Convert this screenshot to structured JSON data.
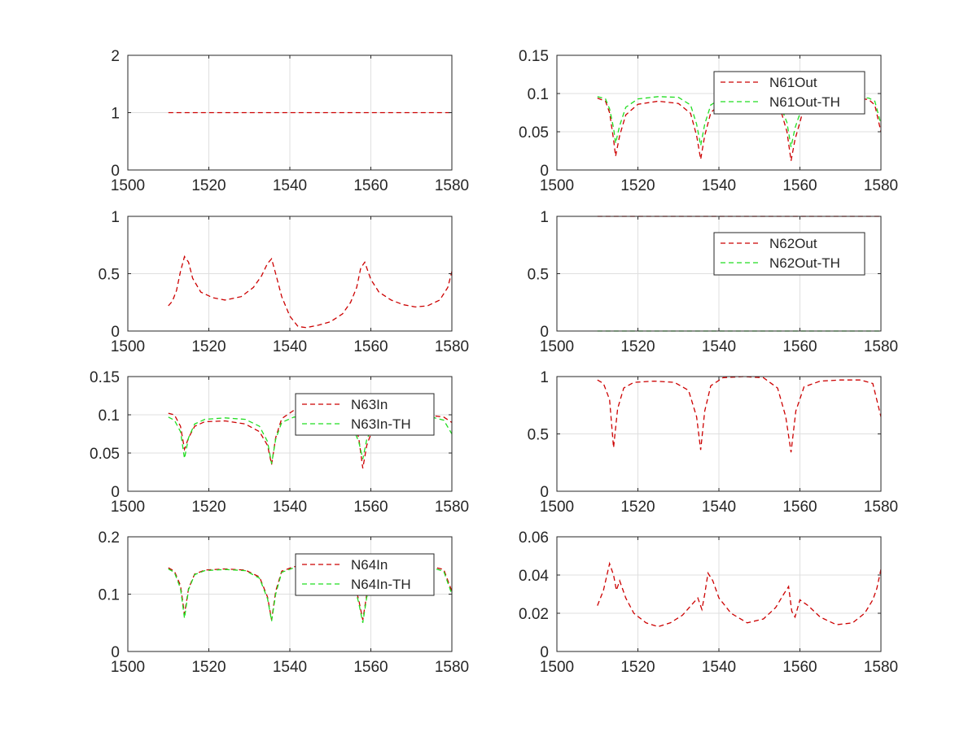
{
  "figure": {
    "background": "#ffffff",
    "grid_color": "#dfdfdf",
    "axes_color": "#262626",
    "grid": true
  },
  "chart_data": [
    {
      "type": "line",
      "panel": "row1-left",
      "xlim": [
        1500,
        1580
      ],
      "ylim": [
        0,
        2
      ],
      "xticks": [
        "1500",
        "1520",
        "1540",
        "1560",
        "1580"
      ],
      "yticks": [
        "0",
        "1",
        "2"
      ],
      "legend": null,
      "series": [
        {
          "color": "#cc0000",
          "style": "dashed",
          "x": [
            1510,
            1580
          ],
          "y": [
            1,
            1
          ]
        }
      ]
    },
    {
      "type": "line",
      "panel": "row1-right",
      "xlim": [
        1500,
        1580
      ],
      "ylim": [
        0,
        0.15
      ],
      "xticks": [
        "1500",
        "1520",
        "1540",
        "1560",
        "1580"
      ],
      "yticks": [
        "0",
        "0.05",
        "0.1",
        "0.15"
      ],
      "legend": "top-right",
      "series": [
        {
          "name": "N61Out",
          "color": "#cc0000",
          "style": "dashed",
          "x": [
            1510,
            1512,
            1513,
            1514,
            1514.5,
            1515.5,
            1517,
            1520,
            1525,
            1530,
            1533,
            1534.5,
            1535.5,
            1536.5,
            1538,
            1541,
            1546,
            1551,
            1555,
            1556.8,
            1557.8,
            1558.8,
            1560.5,
            1563,
            1568,
            1573,
            1577,
            1578.5,
            1580
          ],
          "y": [
            0.094,
            0.09,
            0.075,
            0.04,
            0.018,
            0.045,
            0.072,
            0.086,
            0.09,
            0.087,
            0.074,
            0.045,
            0.014,
            0.045,
            0.075,
            0.09,
            0.096,
            0.095,
            0.083,
            0.05,
            0.012,
            0.04,
            0.072,
            0.088,
            0.094,
            0.095,
            0.092,
            0.085,
            0.05
          ]
        },
        {
          "name": "N61Out-TH",
          "color": "#22dd22",
          "style": "dashed",
          "x": [
            1510,
            1512,
            1513,
            1514,
            1514.5,
            1515.5,
            1517,
            1520,
            1525,
            1530,
            1533,
            1534.5,
            1535.5,
            1536.5,
            1538,
            1541,
            1546,
            1551,
            1555,
            1556.8,
            1557.8,
            1558.8,
            1560.5,
            1563,
            1568,
            1573,
            1577,
            1578.5,
            1580
          ],
          "y": [
            0.096,
            0.093,
            0.08,
            0.055,
            0.035,
            0.058,
            0.082,
            0.093,
            0.096,
            0.095,
            0.085,
            0.06,
            0.032,
            0.06,
            0.085,
            0.095,
            0.097,
            0.096,
            0.087,
            0.062,
            0.03,
            0.055,
            0.082,
            0.093,
            0.096,
            0.096,
            0.094,
            0.09,
            0.06
          ]
        }
      ]
    },
    {
      "type": "line",
      "panel": "row2-left",
      "xlim": [
        1500,
        1580
      ],
      "ylim": [
        0,
        1
      ],
      "xticks": [
        "1500",
        "1520",
        "1540",
        "1560",
        "1580"
      ],
      "yticks": [
        "0",
        "0.5",
        "1"
      ],
      "legend": null,
      "series": [
        {
          "color": "#cc0000",
          "style": "dashed",
          "x": [
            1510,
            1511,
            1512,
            1513,
            1514,
            1515,
            1516,
            1518,
            1521,
            1524,
            1528,
            1531,
            1533,
            1534.5,
            1535.5,
            1536.5,
            1538,
            1540,
            1542,
            1544,
            1547,
            1550,
            1553,
            1555,
            1556.5,
            1557.5,
            1558.5,
            1560,
            1562,
            1565,
            1568,
            1571,
            1574,
            1577,
            1579,
            1580
          ],
          "y": [
            0.22,
            0.26,
            0.35,
            0.52,
            0.65,
            0.6,
            0.46,
            0.34,
            0.29,
            0.27,
            0.3,
            0.38,
            0.48,
            0.59,
            0.63,
            0.5,
            0.3,
            0.13,
            0.04,
            0.03,
            0.05,
            0.08,
            0.15,
            0.25,
            0.38,
            0.55,
            0.6,
            0.45,
            0.34,
            0.27,
            0.23,
            0.21,
            0.22,
            0.27,
            0.38,
            0.52
          ]
        }
      ]
    },
    {
      "type": "line",
      "panel": "row2-right",
      "xlim": [
        1500,
        1580
      ],
      "ylim": [
        0,
        1
      ],
      "xticks": [
        "1500",
        "1520",
        "1540",
        "1560",
        "1580"
      ],
      "yticks": [
        "0",
        "0.5",
        "1"
      ],
      "legend": "top-right",
      "series": [
        {
          "name": "N62Out",
          "color": "#cc0000",
          "style": "dashed",
          "x": [
            1510,
            1580
          ],
          "y": [
            1,
            1
          ]
        },
        {
          "name": "N62Out-TH",
          "color": "#22dd22",
          "style": "dashed",
          "x": [
            1510,
            1580
          ],
          "y": [
            0,
            0
          ]
        }
      ]
    },
    {
      "type": "line",
      "panel": "row3-left",
      "xlim": [
        1500,
        1580
      ],
      "ylim": [
        0,
        0.15
      ],
      "xticks": [
        "1500",
        "1520",
        "1540",
        "1560",
        "1580"
      ],
      "yticks": [
        "0",
        "0.05",
        "0.1",
        "0.15"
      ],
      "legend": "top-right",
      "series": [
        {
          "name": "N63In",
          "color": "#cc0000",
          "style": "dashed",
          "x": [
            1510,
            1511.5,
            1513,
            1514,
            1515,
            1516.5,
            1519,
            1524,
            1529,
            1532.5,
            1534.5,
            1535.5,
            1536.5,
            1538,
            1541,
            1546,
            1551,
            1555,
            1557,
            1558,
            1559,
            1561,
            1565,
            1570,
            1575,
            1578,
            1580
          ],
          "y": [
            0.102,
            0.1,
            0.085,
            0.055,
            0.07,
            0.085,
            0.091,
            0.092,
            0.088,
            0.078,
            0.06,
            0.035,
            0.07,
            0.095,
            0.106,
            0.108,
            0.107,
            0.1,
            0.07,
            0.03,
            0.06,
            0.09,
            0.1,
            0.1,
            0.099,
            0.097,
            0.09
          ]
        },
        {
          "name": "N63In-TH",
          "color": "#22dd22",
          "style": "dashed",
          "x": [
            1510,
            1511.5,
            1513,
            1514,
            1515,
            1516.5,
            1519,
            1524,
            1529,
            1532.5,
            1534.5,
            1535.5,
            1536.5,
            1538,
            1541,
            1546,
            1551,
            1555,
            1557,
            1558,
            1559,
            1561,
            1565,
            1570,
            1575,
            1578,
            1580
          ],
          "y": [
            0.097,
            0.093,
            0.078,
            0.043,
            0.07,
            0.088,
            0.094,
            0.096,
            0.094,
            0.085,
            0.065,
            0.036,
            0.068,
            0.09,
            0.097,
            0.099,
            0.098,
            0.09,
            0.065,
            0.042,
            0.068,
            0.09,
            0.097,
            0.098,
            0.097,
            0.093,
            0.075
          ]
        }
      ]
    },
    {
      "type": "line",
      "panel": "row3-right",
      "xlim": [
        1500,
        1580
      ],
      "ylim": [
        0,
        1
      ],
      "xticks": [
        "1500",
        "1520",
        "1540",
        "1560",
        "1580"
      ],
      "yticks": [
        "0",
        "0.5",
        "1"
      ],
      "legend": null,
      "series": [
        {
          "color": "#cc0000",
          "style": "dashed",
          "x": [
            1510,
            1511.5,
            1513,
            1514,
            1515,
            1516.5,
            1519,
            1524,
            1529,
            1532.5,
            1534.5,
            1535.5,
            1536.5,
            1538,
            1541,
            1546,
            1551,
            1554.5,
            1556.5,
            1557.8,
            1559,
            1561,
            1565,
            1570,
            1575,
            1578,
            1580
          ],
          "y": [
            0.97,
            0.94,
            0.8,
            0.38,
            0.72,
            0.9,
            0.95,
            0.96,
            0.95,
            0.88,
            0.65,
            0.36,
            0.7,
            0.92,
            0.99,
            1.0,
            0.99,
            0.9,
            0.65,
            0.34,
            0.7,
            0.91,
            0.96,
            0.97,
            0.97,
            0.94,
            0.65
          ]
        }
      ]
    },
    {
      "type": "line",
      "panel": "row4-left",
      "xlim": [
        1500,
        1580
      ],
      "ylim": [
        0,
        0.2
      ],
      "xticks": [
        "1500",
        "1520",
        "1540",
        "1560",
        "1580"
      ],
      "yticks": [
        "0",
        "0.1",
        "0.2"
      ],
      "legend": "top-right",
      "series": [
        {
          "name": "N64In",
          "color": "#cc0000",
          "style": "dashed",
          "x": [
            1510,
            1511.5,
            1513,
            1514,
            1515,
            1516.5,
            1519,
            1524,
            1529,
            1532.5,
            1534.5,
            1535.5,
            1536.5,
            1538,
            1541,
            1546,
            1551,
            1555,
            1557,
            1558,
            1559,
            1561,
            1565,
            1570,
            1575,
            1578,
            1580
          ],
          "y": [
            0.146,
            0.14,
            0.115,
            0.065,
            0.11,
            0.135,
            0.142,
            0.144,
            0.142,
            0.13,
            0.095,
            0.055,
            0.105,
            0.14,
            0.148,
            0.15,
            0.15,
            0.142,
            0.09,
            0.055,
            0.1,
            0.135,
            0.146,
            0.148,
            0.148,
            0.143,
            0.105
          ]
        },
        {
          "name": "N64In-TH",
          "color": "#22dd22",
          "style": "dashed",
          "x": [
            1510,
            1511.5,
            1513,
            1514,
            1515,
            1516.5,
            1519,
            1524,
            1529,
            1532.5,
            1534.5,
            1535.5,
            1536.5,
            1538,
            1541,
            1546,
            1551,
            1555,
            1557,
            1558,
            1559,
            1561,
            1565,
            1570,
            1575,
            1578,
            1580
          ],
          "y": [
            0.144,
            0.138,
            0.11,
            0.058,
            0.108,
            0.134,
            0.141,
            0.143,
            0.141,
            0.128,
            0.092,
            0.053,
            0.1,
            0.138,
            0.146,
            0.148,
            0.147,
            0.139,
            0.085,
            0.05,
            0.095,
            0.132,
            0.144,
            0.146,
            0.146,
            0.14,
            0.1
          ]
        }
      ]
    },
    {
      "type": "line",
      "panel": "row4-right",
      "xlim": [
        1500,
        1580
      ],
      "ylim": [
        0,
        0.06
      ],
      "xticks": [
        "1500",
        "1520",
        "1540",
        "1560",
        "1580"
      ],
      "yticks": [
        "0",
        "0.02",
        "0.04",
        "0.06"
      ],
      "legend": null,
      "series": [
        {
          "color": "#cc0000",
          "style": "dashed",
          "x": [
            1510,
            1511.5,
            1513,
            1514,
            1514.7,
            1515.5,
            1517,
            1519,
            1522,
            1525,
            1528,
            1531,
            1533.5,
            1534.8,
            1535.8,
            1536.5,
            1537.3,
            1538.5,
            1540,
            1543,
            1547,
            1551,
            1554,
            1556,
            1557.2,
            1558,
            1558.8,
            1560,
            1562,
            1565,
            1569,
            1573,
            1576,
            1578,
            1579,
            1580
          ],
          "y": [
            0.024,
            0.032,
            0.046,
            0.04,
            0.032,
            0.037,
            0.028,
            0.02,
            0.015,
            0.013,
            0.015,
            0.019,
            0.025,
            0.028,
            0.022,
            0.03,
            0.041,
            0.037,
            0.028,
            0.02,
            0.015,
            0.017,
            0.023,
            0.03,
            0.034,
            0.021,
            0.018,
            0.027,
            0.024,
            0.018,
            0.014,
            0.015,
            0.02,
            0.027,
            0.033,
            0.043
          ]
        }
      ]
    }
  ]
}
